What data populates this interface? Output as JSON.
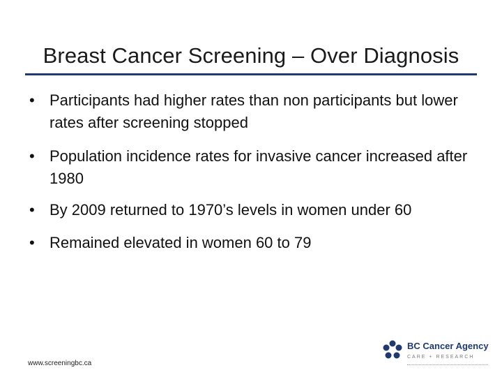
{
  "slide": {
    "title": "Breast Cancer Screening – Over Diagnosis",
    "bullets": [
      "Participants had higher rates than non participants but lower rates after screening stopped",
      "Population incidence rates for invasive cancer increased after 1980",
      "By 2009 returned to 1970’s levels in women under 60",
      "Remained elevated in women 60 to 79"
    ],
    "bullet_glyph": "•"
  },
  "footer": {
    "url": "www.screeningbc.ca"
  },
  "logo": {
    "name": "BC Cancer Agency",
    "tagline": "CARE + RESEARCH",
    "icon": "bc-cancer-agency-logo-icon",
    "colors": {
      "primary": "#1f3a6e",
      "rule": "#1f3a6e"
    }
  }
}
